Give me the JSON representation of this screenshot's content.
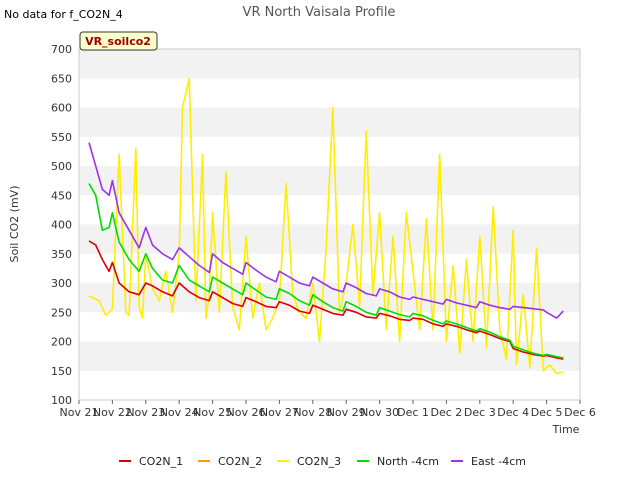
{
  "no_data_note": "No data for f_CO2N_4",
  "badge": "VR_soilco2",
  "chart_data": {
    "type": "line",
    "title": "VR North Vaisala Profile",
    "xlabel": "Time",
    "ylabel": "Soil CO2 (mV)",
    "ylim": [
      100,
      700
    ],
    "yticks": [
      100,
      150,
      200,
      250,
      300,
      350,
      400,
      450,
      500,
      550,
      600,
      650,
      700
    ],
    "xlim": [
      0,
      15
    ],
    "xticks": [
      0,
      1,
      2,
      3,
      4,
      5,
      6,
      7,
      8,
      9,
      10,
      11,
      12,
      13,
      14,
      15
    ],
    "xtick_labels": [
      "Nov 21",
      "Nov 22",
      "Nov 23",
      "Nov 24",
      "Nov 25",
      "Nov 26",
      "Nov 27",
      "Nov 28",
      "Nov 29",
      "Nov 30",
      "Dec 1",
      "Dec 2",
      "Dec 3",
      "Dec 4",
      "Dec 5",
      "Dec 6"
    ],
    "grid": "horizontal bands",
    "legend_position": "bottom",
    "series": [
      {
        "name": "CO2N_1",
        "color": "#dd0000",
        "x": [
          0.3,
          0.5,
          0.7,
          0.9,
          1.0,
          1.2,
          1.5,
          1.8,
          2.0,
          2.2,
          2.5,
          2.8,
          3.0,
          3.3,
          3.6,
          3.9,
          4.0,
          4.3,
          4.6,
          4.9,
          5.0,
          5.3,
          5.6,
          5.9,
          6.0,
          6.3,
          6.6,
          6.9,
          7.0,
          7.3,
          7.6,
          7.9,
          8.0,
          8.3,
          8.6,
          8.9,
          9.0,
          9.3,
          9.6,
          9.9,
          10.0,
          10.3,
          10.6,
          10.9,
          11.0,
          11.3,
          11.6,
          11.9,
          12.0,
          12.3,
          12.6,
          12.9,
          13.0,
          13.3,
          13.6,
          13.9,
          14.0,
          14.3,
          14.5
        ],
        "y": [
          372,
          365,
          340,
          320,
          335,
          300,
          285,
          280,
          300,
          295,
          285,
          278,
          300,
          285,
          275,
          270,
          285,
          275,
          265,
          260,
          275,
          268,
          260,
          258,
          268,
          262,
          252,
          248,
          262,
          255,
          248,
          245,
          255,
          250,
          242,
          240,
          248,
          244,
          238,
          236,
          240,
          238,
          230,
          226,
          230,
          226,
          220,
          215,
          218,
          212,
          205,
          200,
          188,
          182,
          178,
          175,
          176,
          172,
          170
        ]
      },
      {
        "name": "CO2N_2",
        "color": "#ff9900",
        "x": [],
        "y": []
      },
      {
        "name": "CO2N_3",
        "color": "#ffee00",
        "x": [
          0.3,
          0.6,
          0.8,
          1.0,
          1.2,
          1.4,
          1.5,
          1.7,
          1.8,
          1.9,
          2.0,
          2.2,
          2.4,
          2.6,
          2.8,
          3.0,
          3.1,
          3.3,
          3.5,
          3.7,
          3.8,
          3.9,
          4.0,
          4.2,
          4.4,
          4.6,
          4.8,
          5.0,
          5.2,
          5.4,
          5.6,
          5.8,
          6.0,
          6.2,
          6.4,
          6.6,
          6.8,
          7.0,
          7.2,
          7.4,
          7.6,
          7.8,
          8.0,
          8.2,
          8.4,
          8.6,
          8.8,
          9.0,
          9.2,
          9.4,
          9.6,
          9.8,
          10.0,
          10.2,
          10.4,
          10.6,
          10.8,
          11.0,
          11.2,
          11.4,
          11.6,
          11.8,
          12.0,
          12.2,
          12.4,
          12.6,
          12.8,
          13.0,
          13.1,
          13.3,
          13.5,
          13.7,
          13.9,
          14.1,
          14.3,
          14.5
        ],
        "y": [
          278,
          270,
          245,
          255,
          520,
          250,
          245,
          530,
          260,
          240,
          350,
          290,
          270,
          320,
          250,
          350,
          600,
          650,
          270,
          520,
          240,
          280,
          420,
          250,
          490,
          260,
          220,
          380,
          240,
          300,
          220,
          240,
          270,
          470,
          280,
          250,
          240,
          300,
          200,
          360,
          600,
          250,
          300,
          400,
          260,
          560,
          280,
          420,
          220,
          380,
          200,
          420,
          320,
          220,
          410,
          220,
          520,
          200,
          330,
          180,
          340,
          200,
          380,
          190,
          430,
          220,
          170,
          390,
          160,
          280,
          155,
          360,
          150,
          160,
          145,
          148
        ]
      },
      {
        "name": "North -4cm",
        "color": "#00dd00",
        "x": [
          0.3,
          0.5,
          0.7,
          0.9,
          1.0,
          1.2,
          1.5,
          1.8,
          2.0,
          2.2,
          2.5,
          2.8,
          3.0,
          3.3,
          3.6,
          3.9,
          4.0,
          4.3,
          4.6,
          4.9,
          5.0,
          5.3,
          5.6,
          5.9,
          6.0,
          6.3,
          6.6,
          6.9,
          7.0,
          7.3,
          7.6,
          7.9,
          8.0,
          8.3,
          8.6,
          8.9,
          9.0,
          9.3,
          9.6,
          9.9,
          10.0,
          10.3,
          10.6,
          10.9,
          11.0,
          11.3,
          11.6,
          11.9,
          12.0,
          12.3,
          12.6,
          12.9,
          13.0,
          13.3,
          13.6,
          13.9,
          14.0,
          14.3,
          14.5
        ],
        "y": [
          470,
          450,
          390,
          395,
          420,
          370,
          340,
          320,
          350,
          325,
          305,
          300,
          330,
          305,
          295,
          285,
          310,
          300,
          290,
          280,
          300,
          288,
          276,
          272,
          290,
          282,
          270,
          262,
          280,
          268,
          258,
          252,
          268,
          260,
          250,
          245,
          258,
          252,
          246,
          242,
          248,
          244,
          236,
          230,
          235,
          230,
          224,
          218,
          222,
          216,
          208,
          202,
          192,
          186,
          180,
          176,
          178,
          174,
          172
        ]
      },
      {
        "name": "East -4cm",
        "color": "#9933ee",
        "x": [
          0.3,
          0.5,
          0.7,
          0.9,
          1.0,
          1.2,
          1.5,
          1.8,
          2.0,
          2.2,
          2.5,
          2.8,
          3.0,
          3.3,
          3.6,
          3.9,
          4.0,
          4.3,
          4.6,
          4.9,
          5.0,
          5.3,
          5.6,
          5.9,
          6.0,
          6.3,
          6.6,
          6.9,
          7.0,
          7.3,
          7.6,
          7.9,
          8.0,
          8.3,
          8.6,
          8.9,
          9.0,
          9.3,
          9.6,
          9.9,
          10.0,
          10.3,
          10.6,
          10.9,
          11.0,
          11.3,
          11.6,
          11.9,
          12.0,
          12.3,
          12.6,
          12.9,
          13.0,
          13.3,
          13.6,
          13.9,
          14.0,
          14.3,
          14.5
        ],
        "y": [
          540,
          500,
          460,
          450,
          475,
          420,
          390,
          360,
          395,
          365,
          350,
          340,
          360,
          345,
          330,
          318,
          350,
          335,
          325,
          315,
          335,
          322,
          310,
          302,
          320,
          310,
          300,
          295,
          310,
          300,
          290,
          285,
          300,
          292,
          282,
          278,
          290,
          285,
          276,
          272,
          276,
          272,
          268,
          264,
          272,
          266,
          262,
          258,
          268,
          262,
          258,
          255,
          260,
          258,
          256,
          254,
          250,
          240,
          252
        ]
      }
    ]
  }
}
